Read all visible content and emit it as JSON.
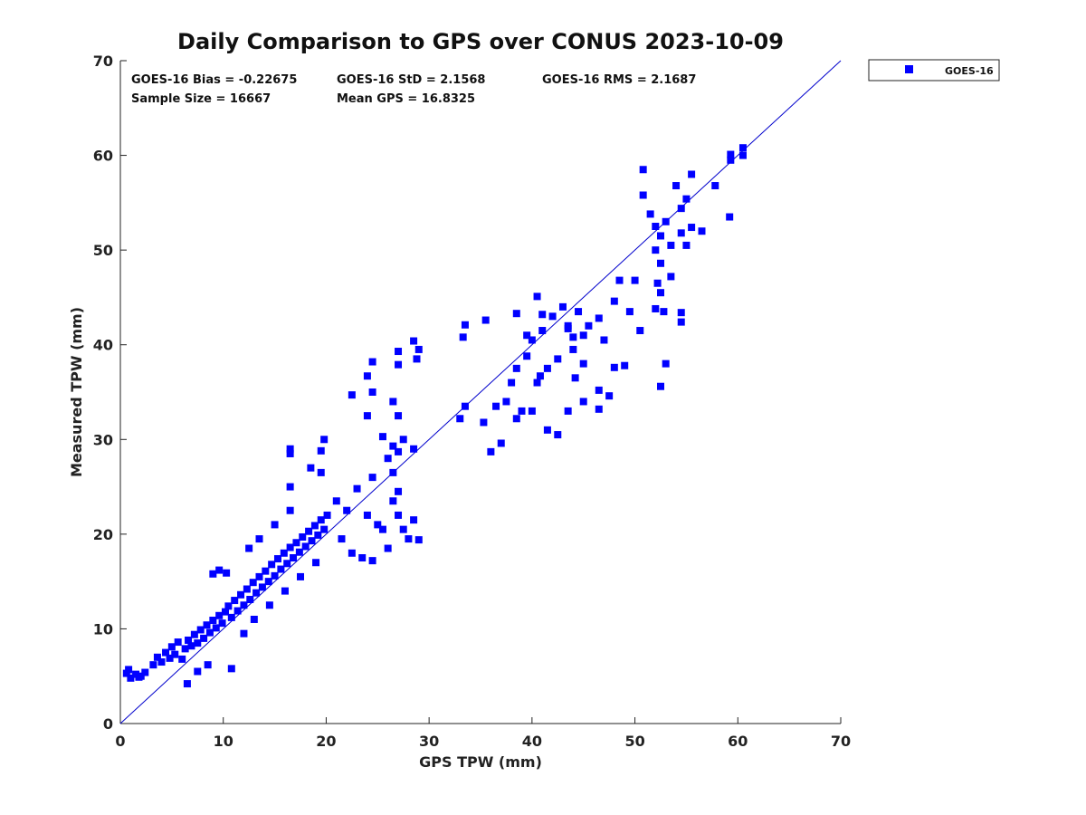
{
  "chart_data": {
    "type": "scatter",
    "title": "Daily Comparison to GPS over CONUS 2023-10-09",
    "xlabel": "GPS TPW (mm)",
    "ylabel": "Measured TPW (mm)",
    "xlim": [
      0,
      70
    ],
    "ylim": [
      0,
      70
    ],
    "xticks": [
      "0",
      "10",
      "20",
      "30",
      "40",
      "50",
      "60",
      "70"
    ],
    "yticks": [
      "0",
      "10",
      "20",
      "30",
      "40",
      "50",
      "60",
      "70"
    ],
    "grid": false,
    "legend_position": "outside-top-right",
    "reference_line": {
      "type": "1:1",
      "from": [
        0,
        0
      ],
      "to": [
        70,
        70
      ]
    },
    "stats": [
      "GOES-16 Bias = -0.22675",
      "GOES-16 StD = 2.1568",
      "GOES-16 RMS = 2.1687",
      "Sample Size = 16667",
      "Mean GPS = 16.8325"
    ],
    "series": [
      {
        "name": "GOES-16",
        "color": "#0000ff",
        "marker": "square",
        "points": [
          [
            0.6,
            5.3
          ],
          [
            1.0,
            4.8
          ],
          [
            1.5,
            5.2
          ],
          [
            2.0,
            5.0
          ],
          [
            2.4,
            5.4
          ],
          [
            0.8,
            5.7
          ],
          [
            1.8,
            4.9
          ],
          [
            3.2,
            6.2
          ],
          [
            3.6,
            7.0
          ],
          [
            4.0,
            6.5
          ],
          [
            4.4,
            7.5
          ],
          [
            4.8,
            6.9
          ],
          [
            5.0,
            8.1
          ],
          [
            5.3,
            7.3
          ],
          [
            5.6,
            8.6
          ],
          [
            6.0,
            6.8
          ],
          [
            6.3,
            7.9
          ],
          [
            6.6,
            8.8
          ],
          [
            6.9,
            8.2
          ],
          [
            7.2,
            9.4
          ],
          [
            7.5,
            8.5
          ],
          [
            7.8,
            9.9
          ],
          [
            8.1,
            9.0
          ],
          [
            8.4,
            10.4
          ],
          [
            8.7,
            9.6
          ],
          [
            9.0,
            10.9
          ],
          [
            9.3,
            10.1
          ],
          [
            9.6,
            11.4
          ],
          [
            9.9,
            10.6
          ],
          [
            10.2,
            11.8
          ],
          [
            6.5,
            4.2
          ],
          [
            7.5,
            5.5
          ],
          [
            8.5,
            6.2
          ],
          [
            10.8,
            5.8
          ],
          [
            9.0,
            15.8
          ],
          [
            9.6,
            16.2
          ],
          [
            10.3,
            15.9
          ],
          [
            10.5,
            12.4
          ],
          [
            10.8,
            11.2
          ],
          [
            11.1,
            13.0
          ],
          [
            11.4,
            11.9
          ],
          [
            11.7,
            13.6
          ],
          [
            12.0,
            12.5
          ],
          [
            12.3,
            14.2
          ],
          [
            12.6,
            13.1
          ],
          [
            12.9,
            14.9
          ],
          [
            13.2,
            13.8
          ],
          [
            13.5,
            15.5
          ],
          [
            13.8,
            14.4
          ],
          [
            14.1,
            16.1
          ],
          [
            14.4,
            15.0
          ],
          [
            14.7,
            16.8
          ],
          [
            15.0,
            15.6
          ],
          [
            15.3,
            17.4
          ],
          [
            15.6,
            16.3
          ],
          [
            15.9,
            18.0
          ],
          [
            16.2,
            16.9
          ],
          [
            16.5,
            18.6
          ],
          [
            16.8,
            17.5
          ],
          [
            17.1,
            19.1
          ],
          [
            17.4,
            18.1
          ],
          [
            17.7,
            19.7
          ],
          [
            18.0,
            18.7
          ],
          [
            18.3,
            20.3
          ],
          [
            18.6,
            19.3
          ],
          [
            18.9,
            20.9
          ],
          [
            19.2,
            19.9
          ],
          [
            19.5,
            21.5
          ],
          [
            19.8,
            20.5
          ],
          [
            20.1,
            22.0
          ],
          [
            12.0,
            9.5
          ],
          [
            13.0,
            11.0
          ],
          [
            14.5,
            12.5
          ],
          [
            16.0,
            14.0
          ],
          [
            17.5,
            15.5
          ],
          [
            19.0,
            17.0
          ],
          [
            12.5,
            18.5
          ],
          [
            13.5,
            19.5
          ],
          [
            15.0,
            21.0
          ],
          [
            16.5,
            22.5
          ],
          [
            16.5,
            25.0
          ],
          [
            16.5,
            29.0
          ],
          [
            16.5,
            28.5
          ],
          [
            18.5,
            27.0
          ],
          [
            19.5,
            26.5
          ],
          [
            19.5,
            28.8
          ],
          [
            19.8,
            30.0
          ],
          [
            21.0,
            23.5
          ],
          [
            22.0,
            22.5
          ],
          [
            23.0,
            24.8
          ],
          [
            24.0,
            22.0
          ],
          [
            24.5,
            26.0
          ],
          [
            25.0,
            21.0
          ],
          [
            21.5,
            19.5
          ],
          [
            22.5,
            18.0
          ],
          [
            23.5,
            17.5
          ],
          [
            24.5,
            17.2
          ],
          [
            25.5,
            20.5
          ],
          [
            26.0,
            18.5
          ],
          [
            27.0,
            22.0
          ],
          [
            27.5,
            20.5
          ],
          [
            28.0,
            19.5
          ],
          [
            28.5,
            21.5
          ],
          [
            29.0,
            19.4
          ],
          [
            26.5,
            23.5
          ],
          [
            27.0,
            24.5
          ],
          [
            24.0,
            36.7
          ],
          [
            22.5,
            34.7
          ],
          [
            24.0,
            32.5
          ],
          [
            24.5,
            35.0
          ],
          [
            24.5,
            38.2
          ],
          [
            25.5,
            30.3
          ],
          [
            26.0,
            28.0
          ],
          [
            26.5,
            29.3
          ],
          [
            27.0,
            28.7
          ],
          [
            27.5,
            30.0
          ],
          [
            28.5,
            29.0
          ],
          [
            26.5,
            34.0
          ],
          [
            27.0,
            32.5
          ],
          [
            27.0,
            37.9
          ],
          [
            27.0,
            39.3
          ],
          [
            28.5,
            40.4
          ],
          [
            28.8,
            38.5
          ],
          [
            29.0,
            39.5
          ],
          [
            26.5,
            26.5
          ],
          [
            33.0,
            32.2
          ],
          [
            33.5,
            33.5
          ],
          [
            33.3,
            40.8
          ],
          [
            33.5,
            42.1
          ],
          [
            35.5,
            42.6
          ],
          [
            36.0,
            28.7
          ],
          [
            37.0,
            29.6
          ],
          [
            36.5,
            33.5
          ],
          [
            37.5,
            34.0
          ],
          [
            38.0,
            36.0
          ],
          [
            38.5,
            37.5
          ],
          [
            39.0,
            33.0
          ],
          [
            39.5,
            38.8
          ],
          [
            40.0,
            40.5
          ],
          [
            40.5,
            36.0
          ],
          [
            41.0,
            41.5
          ],
          [
            41.5,
            37.5
          ],
          [
            42.0,
            43.0
          ],
          [
            42.5,
            38.5
          ],
          [
            43.0,
            44.0
          ],
          [
            43.5,
            42.0
          ],
          [
            44.0,
            39.5
          ],
          [
            44.5,
            43.5
          ],
          [
            45.0,
            41.0
          ],
          [
            40.5,
            45.1
          ],
          [
            41.0,
            43.2
          ],
          [
            39.5,
            41.0
          ],
          [
            38.5,
            43.3
          ],
          [
            41.5,
            31.0
          ],
          [
            42.5,
            30.5
          ],
          [
            43.5,
            33.0
          ],
          [
            45.0,
            34.0
          ],
          [
            46.5,
            33.2
          ],
          [
            46.5,
            35.2
          ],
          [
            47.5,
            34.6
          ],
          [
            48.0,
            37.6
          ],
          [
            49.0,
            37.8
          ],
          [
            48.0,
            44.6
          ],
          [
            48.5,
            46.8
          ],
          [
            49.5,
            43.5
          ],
          [
            50.0,
            46.8
          ],
          [
            50.5,
            41.5
          ],
          [
            47.0,
            40.5
          ],
          [
            46.5,
            42.8
          ],
          [
            45.5,
            42.0
          ],
          [
            44.0,
            40.8
          ],
          [
            43.5,
            41.7
          ],
          [
            44.2,
            36.5
          ],
          [
            45.0,
            38.0
          ],
          [
            50.8,
            58.5
          ],
          [
            50.8,
            55.8
          ],
          [
            51.5,
            53.8
          ],
          [
            52.0,
            52.5
          ],
          [
            52.5,
            51.5
          ],
          [
            53.0,
            53.0
          ],
          [
            52.0,
            50.0
          ],
          [
            52.5,
            48.6
          ],
          [
            52.2,
            46.5
          ],
          [
            52.5,
            45.5
          ],
          [
            53.5,
            50.5
          ],
          [
            54.5,
            51.8
          ],
          [
            55.0,
            50.5
          ],
          [
            55.5,
            52.4
          ],
          [
            56.5,
            52.0
          ],
          [
            54.0,
            56.8
          ],
          [
            55.5,
            58.0
          ],
          [
            55.0,
            55.4
          ],
          [
            54.5,
            54.4
          ],
          [
            52.0,
            43.8
          ],
          [
            52.8,
            43.5
          ],
          [
            52.5,
            35.6
          ],
          [
            53.0,
            38.0
          ],
          [
            53.5,
            47.2
          ],
          [
            54.5,
            43.4
          ],
          [
            54.5,
            42.4
          ],
          [
            57.8,
            56.8
          ],
          [
            59.3,
            59.5
          ],
          [
            59.3,
            60.1
          ],
          [
            60.5,
            60.8
          ],
          [
            60.5,
            60.0
          ],
          [
            59.2,
            53.5
          ],
          [
            35.3,
            31.8
          ],
          [
            38.5,
            32.2
          ],
          [
            40.0,
            33.0
          ],
          [
            40.8,
            36.7
          ]
        ]
      }
    ]
  }
}
